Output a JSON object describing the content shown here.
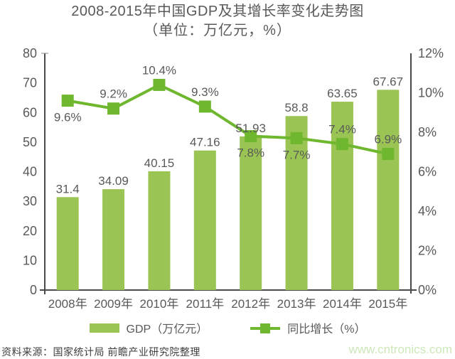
{
  "title": "2008-2015年中国GDP及其增长率变化走势图",
  "subtitle": "（单位：万亿元，%）",
  "chart_data": {
    "type": "bar",
    "title": "2008-2015年中国GDP及其增长率变化走势图",
    "subtitle": "（单位：万亿元，%）",
    "categories": [
      "2008年",
      "2009年",
      "2010年",
      "2011年",
      "2012年",
      "2013年",
      "2014年",
      "2015年"
    ],
    "series": [
      {
        "name": "GDP（万亿元）",
        "type": "bar",
        "axis": "left",
        "values": [
          31.4,
          34.09,
          40.15,
          47.16,
          51.93,
          58.8,
          63.65,
          67.67
        ],
        "labels": [
          "31.4",
          "34.09",
          "40.15",
          "47.16",
          "51.93",
          "58.8",
          "63.65",
          "67.67"
        ]
      },
      {
        "name": "同比增长（%）",
        "type": "line",
        "axis": "right",
        "values": [
          9.6,
          9.2,
          10.4,
          9.3,
          7.8,
          7.7,
          7.4,
          6.9
        ],
        "labels": [
          "9.6%",
          "9.2%",
          "10.4%",
          "9.3%",
          "7.8%",
          "7.7%",
          "7.4%",
          "6.9%"
        ],
        "label_positions": [
          "below",
          "above",
          "above",
          "above",
          "below",
          "below",
          "above",
          "above"
        ]
      }
    ],
    "left_axis": {
      "min": 0,
      "max": 80,
      "ticks": [
        "80",
        "70",
        "60",
        "50",
        "40",
        "30",
        "20",
        "10",
        "0"
      ]
    },
    "right_axis": {
      "min": 0,
      "max": 12,
      "ticks": [
        "12%",
        "10%",
        "8%",
        "6%",
        "4%",
        "2%",
        "0%"
      ]
    },
    "grid": false,
    "legend_position": "bottom"
  },
  "legend": {
    "items": [
      {
        "label": "GDP（万亿元）",
        "marker": "bar-swatch"
      },
      {
        "label": "同比增长（%）",
        "marker": "line-square"
      }
    ]
  },
  "footer": {
    "source": "资料来源：国家统计局 前瞻产业研究院整理",
    "watermark": "www.cntronics.com"
  },
  "colors": {
    "bar": "#9AC554",
    "line": "#6FB72E",
    "axis": "#4a4a4a",
    "text": "#595959",
    "source": "#3f3f3f",
    "watermark": "#CDE8B9"
  }
}
